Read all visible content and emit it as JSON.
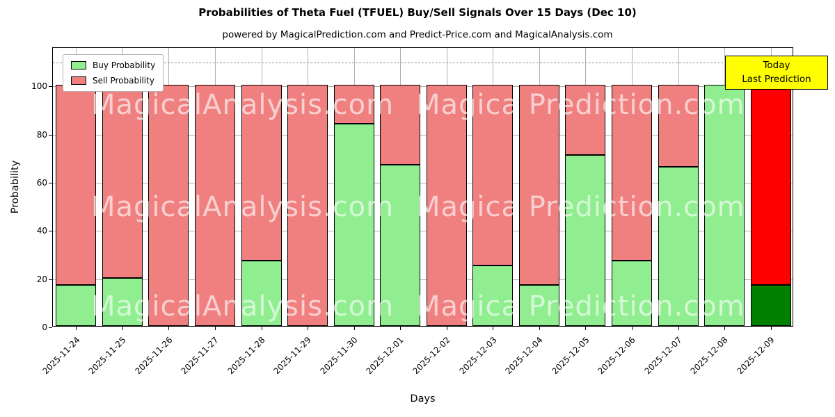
{
  "chart_data": {
    "type": "bar",
    "stacked": true,
    "title": "Probabilities of Theta Fuel (TFUEL) Buy/Sell Signals Over 15 Days (Dec 10)",
    "subtitle": "powered by MagicalPrediction.com and Predict-Price.com and MagicalAnalysis.com",
    "xlabel": "Days",
    "ylabel": "Probability",
    "ylim": [
      0,
      116
    ],
    "yticks": [
      0,
      20,
      40,
      60,
      80,
      100
    ],
    "dashed_line_y": 110,
    "grid": true,
    "legend_position": "upper left",
    "categories": [
      "2025-11-24",
      "2025-11-25",
      "2025-11-26",
      "2025-11-27",
      "2025-11-28",
      "2025-11-29",
      "2025-11-30",
      "2025-12-01",
      "2025-12-02",
      "2025-12-03",
      "2025-12-04",
      "2025-12-05",
      "2025-12-06",
      "2025-12-07",
      "2025-12-08",
      "2025-12-09"
    ],
    "series": [
      {
        "name": "Buy Probability",
        "color": "#90EE90",
        "values": [
          17,
          20,
          0,
          0,
          27,
          0,
          84,
          67,
          0,
          25,
          17,
          71,
          27,
          66,
          100,
          17
        ]
      },
      {
        "name": "Sell Probability",
        "color": "#F08080",
        "values": [
          83,
          80,
          100,
          100,
          73,
          100,
          16,
          33,
          100,
          75,
          83,
          29,
          73,
          34,
          0,
          83
        ]
      }
    ],
    "today_bar": {
      "index": 15,
      "buy_color": "#008000",
      "sell_color": "#FF0000"
    },
    "legend": {
      "items": [
        {
          "label": "Buy Probability",
          "color": "#90EE90"
        },
        {
          "label": "Sell Probability",
          "color": "#F08080"
        }
      ]
    },
    "annotation": {
      "lines": [
        "Today",
        "Last Prediction"
      ],
      "bg": "#FFFF00"
    },
    "watermarks": {
      "left": "MagicalAnalysis.com",
      "right": "Magica Prediction.com"
    }
  }
}
